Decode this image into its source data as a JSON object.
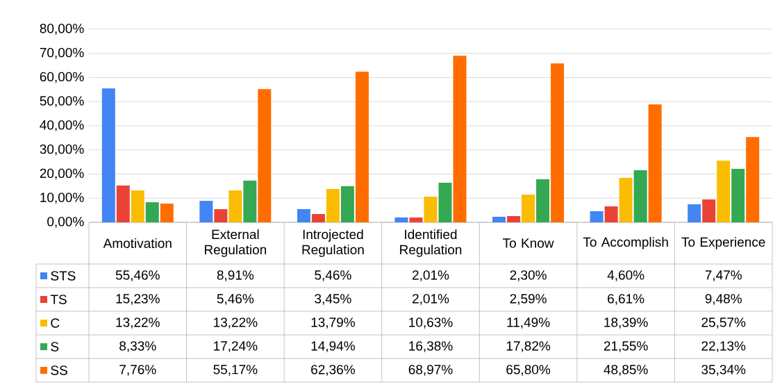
{
  "chart_data": {
    "type": "bar",
    "categories": [
      "Amotivation",
      "External Regulation",
      "Introjected Regulation",
      "Identified Regulation",
      "To Know",
      "To Accomplish",
      "To Experience"
    ],
    "series": [
      {
        "name": "STS",
        "color": "#4285f4",
        "values": [
          55.46,
          8.91,
          5.46,
          2.01,
          2.3,
          4.6,
          7.47
        ],
        "value_labels": [
          "55,46%",
          "8,91%",
          "5,46%",
          "2,01%",
          "2,30%",
          "4,60%",
          "7,47%"
        ]
      },
      {
        "name": "TS",
        "color": "#ea4335",
        "values": [
          15.23,
          5.46,
          3.45,
          2.01,
          2.59,
          6.61,
          9.48
        ],
        "value_labels": [
          "15,23%",
          "5,46%",
          "3,45%",
          "2,01%",
          "2,59%",
          "6,61%",
          "9,48%"
        ]
      },
      {
        "name": "C",
        "color": "#fbbc04",
        "values": [
          13.22,
          13.22,
          13.79,
          10.63,
          11.49,
          18.39,
          25.57
        ],
        "value_labels": [
          "13,22%",
          "13,22%",
          "13,79%",
          "10,63%",
          "11,49%",
          "18,39%",
          "25,57%"
        ]
      },
      {
        "name": "S",
        "color": "#34a853",
        "values": [
          8.33,
          17.24,
          14.94,
          16.38,
          17.82,
          21.55,
          22.13
        ],
        "value_labels": [
          "8,33%",
          "17,24%",
          "14,94%",
          "16,38%",
          "17,82%",
          "21,55%",
          "22,13%"
        ]
      },
      {
        "name": "SS",
        "color": "#ff6d01",
        "values": [
          7.76,
          55.17,
          62.36,
          68.97,
          65.8,
          48.85,
          35.34
        ],
        "value_labels": [
          "7,76%",
          "55,17%",
          "62,36%",
          "68,97%",
          "65,80%",
          "48,85%",
          "35,34%"
        ]
      }
    ],
    "ylim": [
      0,
      80
    ],
    "yticks": [
      {
        "value": 0,
        "label": "0,00%"
      },
      {
        "value": 10,
        "label": "10,00%"
      },
      {
        "value": 20,
        "label": "20,00%"
      },
      {
        "value": 30,
        "label": "30,00%"
      },
      {
        "value": 40,
        "label": "40,00%"
      },
      {
        "value": 50,
        "label": "50,00%"
      },
      {
        "value": 60,
        "label": "60,00%"
      },
      {
        "value": 70,
        "label": "70,00%"
      },
      {
        "value": 80,
        "label": "80,00%"
      }
    ],
    "grid": "y",
    "legend": "bottom"
  }
}
